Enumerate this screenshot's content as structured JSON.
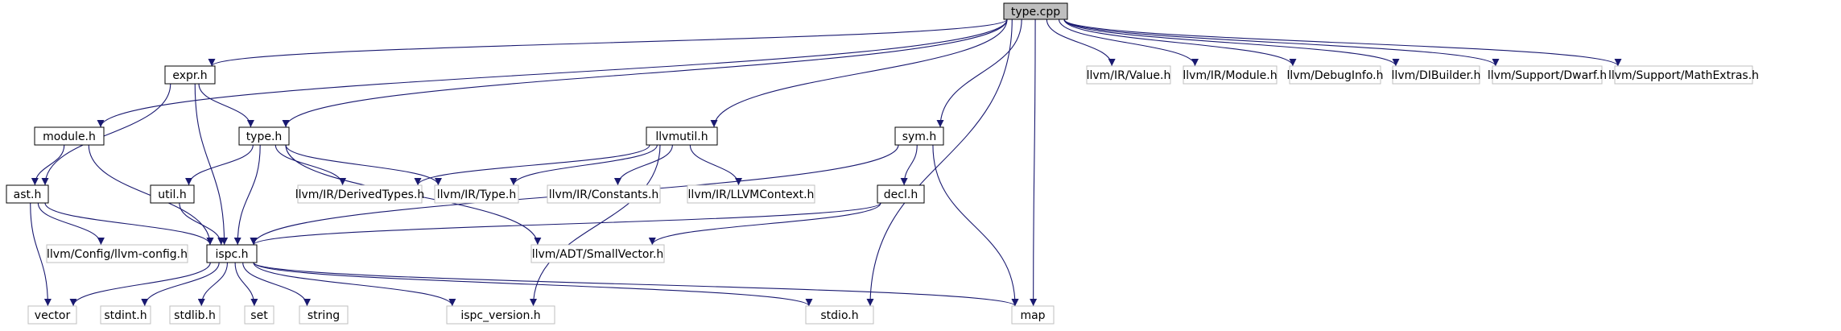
{
  "colors": {
    "edge": "#191970",
    "root_fill": "#bfbfbf",
    "node_border": "#000000",
    "external_border": "#bfbfbf",
    "node_fill": "#ffffff",
    "text": "#000000"
  },
  "nodes": [
    {
      "id": "type_cpp",
      "label": "type.cpp",
      "kind": "root"
    },
    {
      "id": "expr_h",
      "label": "expr.h",
      "kind": "local"
    },
    {
      "id": "module_h",
      "label": "module.h",
      "kind": "local"
    },
    {
      "id": "type_h",
      "label": "type.h",
      "kind": "local"
    },
    {
      "id": "llvmutil_h",
      "label": "llvmutil.h",
      "kind": "local"
    },
    {
      "id": "sym_h",
      "label": "sym.h",
      "kind": "local"
    },
    {
      "id": "ast_h",
      "label": "ast.h",
      "kind": "local"
    },
    {
      "id": "util_h",
      "label": "util.h",
      "kind": "local"
    },
    {
      "id": "decl_h",
      "label": "decl.h",
      "kind": "local"
    },
    {
      "id": "ispc_h",
      "label": "ispc.h",
      "kind": "local"
    },
    {
      "id": "llvm_value",
      "label": "llvm/IR/Value.h",
      "kind": "external"
    },
    {
      "id": "llvm_module",
      "label": "llvm/IR/Module.h",
      "kind": "external"
    },
    {
      "id": "llvm_debuginfo",
      "label": "llvm/DebugInfo.h",
      "kind": "external"
    },
    {
      "id": "llvm_dibuilder",
      "label": "llvm/DIBuilder.h",
      "kind": "external"
    },
    {
      "id": "llvm_dwarf",
      "label": "llvm/Support/Dwarf.h",
      "kind": "external"
    },
    {
      "id": "llvm_mathextras",
      "label": "llvm/Support/MathExtras.h",
      "kind": "external"
    },
    {
      "id": "llvm_derivedtypes",
      "label": "llvm/IR/DerivedTypes.h",
      "kind": "external"
    },
    {
      "id": "llvm_type",
      "label": "llvm/IR/Type.h",
      "kind": "external"
    },
    {
      "id": "llvm_constants",
      "label": "llvm/IR/Constants.h",
      "kind": "external"
    },
    {
      "id": "llvm_llvmcontext",
      "label": "llvm/IR/LLVMContext.h",
      "kind": "external"
    },
    {
      "id": "llvm_config",
      "label": "llvm/Config/llvm-config.h",
      "kind": "external"
    },
    {
      "id": "llvm_smallvector",
      "label": "llvm/ADT/SmallVector.h",
      "kind": "external"
    },
    {
      "id": "vector",
      "label": "vector",
      "kind": "external"
    },
    {
      "id": "stdint_h",
      "label": "stdint.h",
      "kind": "external"
    },
    {
      "id": "stdlib_h",
      "label": "stdlib.h",
      "kind": "external"
    },
    {
      "id": "set",
      "label": "set",
      "kind": "external"
    },
    {
      "id": "string",
      "label": "string",
      "kind": "external"
    },
    {
      "id": "ispc_version_h",
      "label": "ispc_version.h",
      "kind": "external"
    },
    {
      "id": "stdio_h",
      "label": "stdio.h",
      "kind": "external"
    },
    {
      "id": "map",
      "label": "map",
      "kind": "external"
    }
  ],
  "edges": [
    {
      "from": "type_cpp",
      "to": "expr_h"
    },
    {
      "from": "type_cpp",
      "to": "module_h"
    },
    {
      "from": "type_cpp",
      "to": "type_h"
    },
    {
      "from": "type_cpp",
      "to": "llvmutil_h"
    },
    {
      "from": "type_cpp",
      "to": "sym_h"
    },
    {
      "from": "type_cpp",
      "to": "stdio_h"
    },
    {
      "from": "type_cpp",
      "to": "map"
    },
    {
      "from": "type_cpp",
      "to": "llvm_value"
    },
    {
      "from": "type_cpp",
      "to": "llvm_module"
    },
    {
      "from": "type_cpp",
      "to": "llvm_debuginfo"
    },
    {
      "from": "type_cpp",
      "to": "llvm_dibuilder"
    },
    {
      "from": "type_cpp",
      "to": "llvm_dwarf"
    },
    {
      "from": "type_cpp",
      "to": "llvm_mathextras"
    },
    {
      "from": "expr_h",
      "to": "ast_h"
    },
    {
      "from": "expr_h",
      "to": "type_h"
    },
    {
      "from": "expr_h",
      "to": "ispc_h"
    },
    {
      "from": "module_h",
      "to": "ast_h"
    },
    {
      "from": "module_h",
      "to": "ispc_h"
    },
    {
      "from": "type_h",
      "to": "util_h"
    },
    {
      "from": "type_h",
      "to": "ispc_h"
    },
    {
      "from": "type_h",
      "to": "llvm_derivedtypes"
    },
    {
      "from": "type_h",
      "to": "llvm_type"
    },
    {
      "from": "type_h",
      "to": "llvm_smallvector"
    },
    {
      "from": "llvmutil_h",
      "to": "llvm_derivedtypes"
    },
    {
      "from": "llvmutil_h",
      "to": "llvm_type"
    },
    {
      "from": "llvmutil_h",
      "to": "llvm_constants"
    },
    {
      "from": "llvmutil_h",
      "to": "llvm_llvmcontext"
    },
    {
      "from": "llvmutil_h",
      "to": "ispc_version_h"
    },
    {
      "from": "sym_h",
      "to": "decl_h"
    },
    {
      "from": "sym_h",
      "to": "ispc_h"
    },
    {
      "from": "sym_h",
      "to": "map"
    },
    {
      "from": "ast_h",
      "to": "ispc_h"
    },
    {
      "from": "ast_h",
      "to": "llvm_config"
    },
    {
      "from": "ast_h",
      "to": "vector"
    },
    {
      "from": "util_h",
      "to": "ispc_h"
    },
    {
      "from": "decl_h",
      "to": "ispc_h"
    },
    {
      "from": "decl_h",
      "to": "llvm_smallvector"
    },
    {
      "from": "ispc_h",
      "to": "vector"
    },
    {
      "from": "ispc_h",
      "to": "stdint_h"
    },
    {
      "from": "ispc_h",
      "to": "stdlib_h"
    },
    {
      "from": "ispc_h",
      "to": "set"
    },
    {
      "from": "ispc_h",
      "to": "string"
    },
    {
      "from": "ispc_h",
      "to": "ispc_version_h"
    },
    {
      "from": "ispc_h",
      "to": "stdio_h"
    },
    {
      "from": "ispc_h",
      "to": "map"
    }
  ]
}
